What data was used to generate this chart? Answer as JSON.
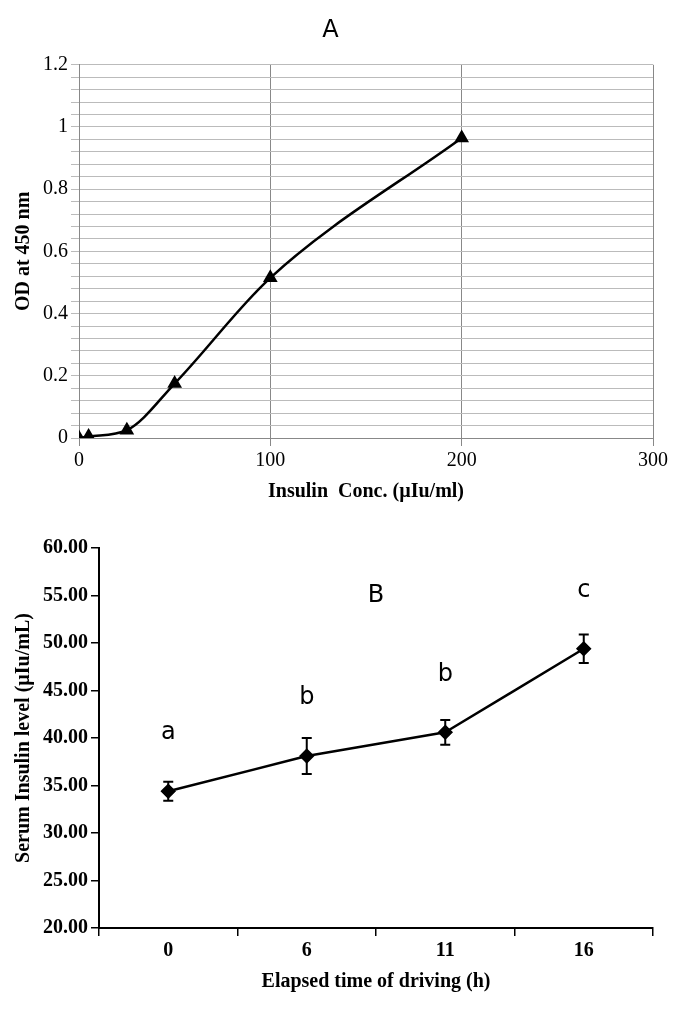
{
  "chart_data": [
    {
      "type": "line",
      "title": "A",
      "xlabel": "Insulin  Conc. (µIu/ml)",
      "ylabel": "OD at 450 nm",
      "x": [
        0,
        5,
        25,
        50,
        100,
        200
      ],
      "series": [
        {
          "color": "#000000",
          "values": [
            0,
            0.005,
            0.025,
            0.175,
            0.515,
            0.965
          ]
        }
      ],
      "xlim": [
        0,
        300
      ],
      "xticks": [
        0,
        100,
        200,
        300
      ],
      "ylim": [
        0,
        1.2
      ],
      "yticks": [
        0,
        {
          "value": 0.04,
          "label": null
        },
        {
          "value": 0.08,
          "label": null
        },
        {
          "value": 0.12,
          "label": null
        },
        {
          "value": 0.16,
          "label": null
        },
        0.2,
        {
          "value": 0.24,
          "label": null
        },
        {
          "value": 0.28,
          "label": null
        },
        {
          "value": 0.32,
          "label": null
        },
        {
          "value": 0.36,
          "label": null
        },
        0.4,
        {
          "value": 0.44,
          "label": null
        },
        {
          "value": 0.48,
          "label": null
        },
        {
          "value": 0.52,
          "label": null
        },
        {
          "value": 0.56,
          "label": null
        },
        0.6,
        {
          "value": 0.64,
          "label": null
        },
        {
          "value": 0.68,
          "label": null
        },
        {
          "value": 0.72,
          "label": null
        },
        {
          "value": 0.76,
          "label": null
        },
        0.8,
        {
          "value": 0.84,
          "label": null
        },
        {
          "value": 0.88,
          "label": null
        },
        {
          "value": 0.92,
          "label": null
        },
        {
          "value": 0.96,
          "label": null
        },
        1,
        {
          "value": 1.04,
          "label": null
        },
        {
          "value": 1.08,
          "label": null
        },
        {
          "value": 1.12,
          "label": null
        },
        {
          "value": 1.16,
          "label": null
        },
        1.2
      ],
      "grid": true,
      "legend": false,
      "marker": "triangle",
      "line_style": "solid"
    },
    {
      "type": "line",
      "title": "B",
      "xlabel": "Elapsed time of driving (h)",
      "ylabel": "Serum Insulin level (µIu/mL)",
      "categories": [
        "0",
        "6",
        "11",
        "16"
      ],
      "series": [
        {
          "color": "#000000",
          "values": [
            34.4,
            38.1,
            40.6,
            49.4
          ],
          "errors": [
            1.0,
            1.9,
            1.3,
            1.5
          ]
        }
      ],
      "ylim": [
        20,
        60
      ],
      "yticks": [
        {
          "value": 20,
          "label": "20.00"
        },
        {
          "value": 25,
          "label": "25.00"
        },
        {
          "value": 30,
          "label": "30.00"
        },
        {
          "value": 35,
          "label": "35.00"
        },
        {
          "value": 40,
          "label": "40.00"
        },
        {
          "value": 45,
          "label": "45.00"
        },
        {
          "value": 50,
          "label": "50.00"
        },
        {
          "value": 55,
          "label": "55.00"
        },
        {
          "value": 60,
          "label": "60.00"
        }
      ],
      "annotations": [
        "a",
        "b",
        "b",
        "c"
      ],
      "grid": false,
      "legend": false,
      "marker": "diamond",
      "line_style": "solid"
    }
  ]
}
